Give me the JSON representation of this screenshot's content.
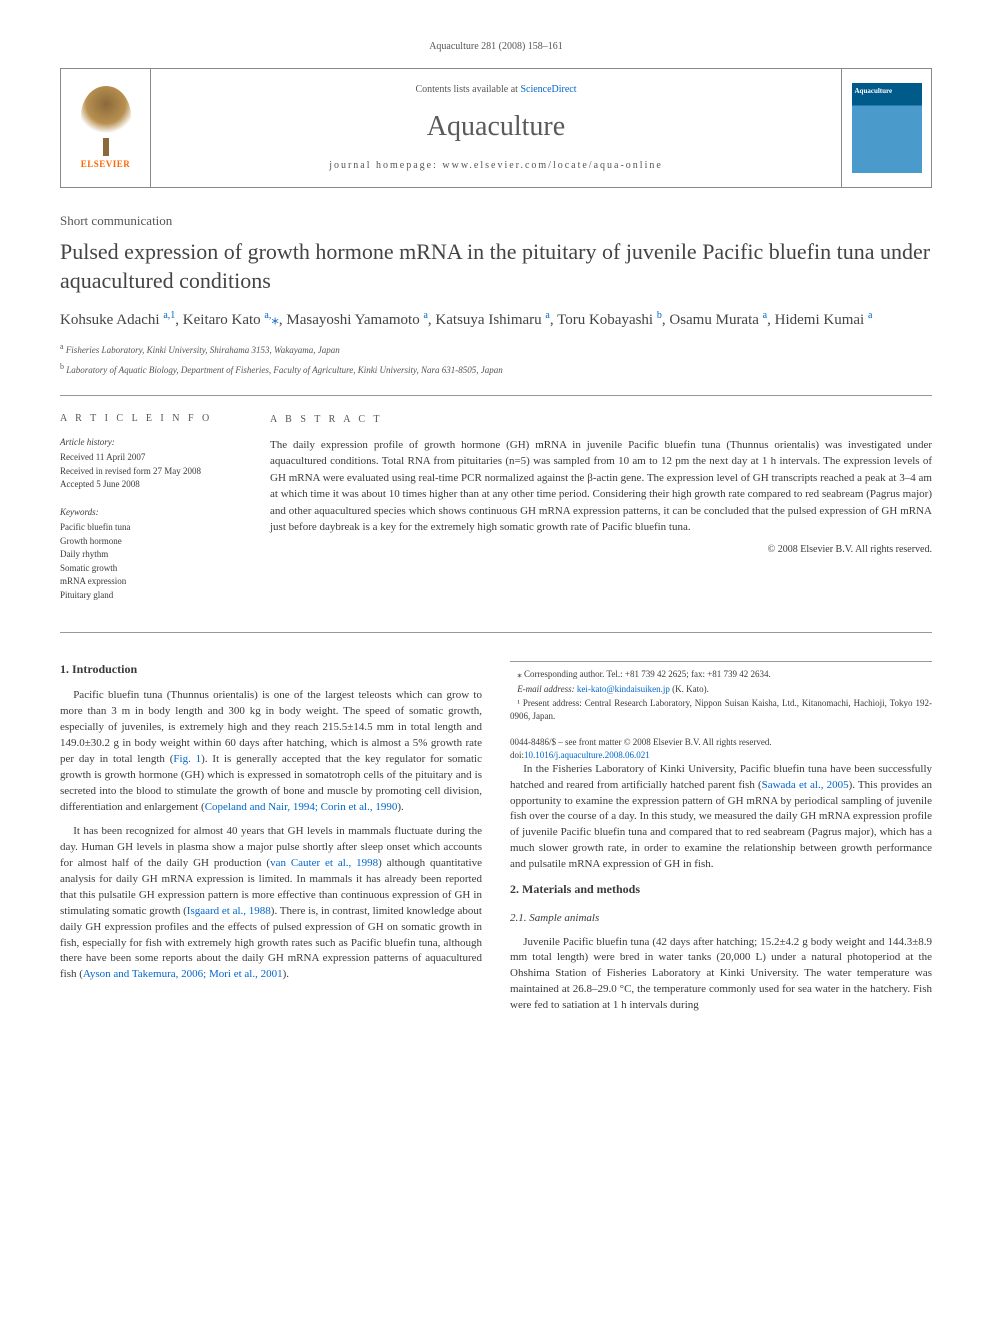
{
  "header": {
    "citation_line": "Aquaculture 281 (2008) 158–161",
    "contents_text": "Contents lists available at ",
    "contents_link": "ScienceDirect",
    "journal_name": "Aquaculture",
    "homepage_text": "journal homepage: www.elsevier.com/locate/aqua-online",
    "elsevier_label": "ELSEVIER",
    "cover_label": "Aquaculture"
  },
  "article": {
    "type": "Short communication",
    "title": "Pulsed expression of growth hormone mRNA in the pituitary of juvenile Pacific bluefin tuna under aquacultured conditions",
    "authors_html": "Kohsuke Adachi <sup>a,1</sup>, Keitaro Kato <sup>a,</sup><span class='star'>⁎</span>, Masayoshi Yamamoto <sup>a</sup>, Katsuya Ishimaru <sup>a</sup>, Toru Kobayashi <sup>b</sup>, Osamu Murata <sup>a</sup>, Hidemi Kumai <sup>a</sup>",
    "affiliations": [
      {
        "sup": "a",
        "text": "Fisheries Laboratory, Kinki University, Shirahama 3153, Wakayama, Japan"
      },
      {
        "sup": "b",
        "text": "Laboratory of Aquatic Biology, Department of Fisheries, Faculty of Agriculture, Kinki University, Nara 631-8505, Japan"
      }
    ]
  },
  "info": {
    "section_label": "A R T I C L E   I N F O",
    "history_heading": "Article history:",
    "history": [
      "Received 11 April 2007",
      "Received in revised form 27 May 2008",
      "Accepted 5 June 2008"
    ],
    "keywords_heading": "Keywords:",
    "keywords": [
      "Pacific bluefin tuna",
      "Growth hormone",
      "Daily rhythm",
      "Somatic growth",
      "mRNA expression",
      "Pituitary gland"
    ]
  },
  "abstract": {
    "section_label": "A B S T R A C T",
    "text": "The daily expression profile of growth hormone (GH) mRNA in juvenile Pacific bluefin tuna (Thunnus orientalis) was investigated under aquacultured conditions. Total RNA from pituitaries (n=5) was sampled from 10 am to 12 pm the next day at 1 h intervals. The expression levels of GH mRNA were evaluated using real-time PCR normalized against the β-actin gene. The expression level of GH transcripts reached a peak at 3–4 am at which time it was about 10 times higher than at any other time period. Considering their high growth rate compared to red seabream (Pagrus major) and other aquacultured species which shows continuous GH mRNA expression patterns, it can be concluded that the pulsed expression of GH mRNA just before daybreak is a key for the extremely high somatic growth rate of Pacific bluefin tuna.",
    "copyright": "© 2008 Elsevier B.V. All rights reserved."
  },
  "body": {
    "sec1_heading": "1. Introduction",
    "sec1_p1": "Pacific bluefin tuna (Thunnus orientalis) is one of the largest teleosts which can grow to more than 3 m in body length and 300 kg in body weight. The speed of somatic growth, especially of juveniles, is extremely high and they reach 215.5±14.5 mm in total length and 149.0±30.2 g in body weight within 60 days after hatching, which is almost a 5% growth rate per day in total length (",
    "sec1_p1_link1": "Fig. 1",
    "sec1_p1_cont": "). It is generally accepted that the key regulator for somatic growth is growth hormone (GH) which is expressed in somatotroph cells of the pituitary and is secreted into the blood to stimulate the growth of bone and muscle by promoting cell division, differentiation and enlargement (",
    "sec1_p1_link2": "Copeland and Nair, 1994; Corin et al., 1990",
    "sec1_p1_end": ").",
    "sec1_p2": "It has been recognized for almost 40 years that GH levels in mammals fluctuate during the day. Human GH levels in plasma show a major pulse shortly after sleep onset which accounts for almost half of the daily GH production (",
    "sec1_p2_link1": "van Cauter et al., 1998",
    "sec1_p2_cont": ") although quantitative analysis for daily GH mRNA expression is limited. In mammals it has already been reported that this pulsatile GH expression pattern is more effective than continuous expression of GH in stimulating somatic growth (",
    "sec1_p2_link2": "Isgaard et al., 1988",
    "sec1_p2_cont2": "). There is, in contrast, limited knowledge about daily GH expression profiles and the effects of pulsed expression of GH on somatic growth in fish, especially for fish with extremely high growth rates such as Pacific bluefin tuna, although there have been some reports about the daily GH mRNA expression patterns of aquacultured fish (",
    "sec1_p2_link3": "Ayson and Takemura, 2006; Mori et al., 2001",
    "sec1_p2_end": ").",
    "sec1_p3": "In the Fisheries Laboratory of Kinki University, Pacific bluefin tuna have been successfully hatched and reared from artificially hatched parent fish (",
    "sec1_p3_link1": "Sawada et al., 2005",
    "sec1_p3_cont": "). This provides an opportunity to examine the expression pattern of GH mRNA by periodical sampling of juvenile fish over the course of a day. In this study, we measured the daily GH mRNA expression profile of juvenile Pacific bluefin tuna and compared that to red seabream (Pagrus major), which has a much slower growth rate, in order to examine the relationship between growth performance and pulsatile mRNA expression of GH in fish.",
    "sec2_heading": "2. Materials and methods",
    "sec2_1_heading": "2.1. Sample animals",
    "sec2_1_p1": "Juvenile Pacific bluefin tuna (42 days after hatching; 15.2±4.2 g body weight and 144.3±8.9 mm total length) were bred in water tanks (20,000 L) under a natural photoperiod at the Ohshima Station of Fisheries Laboratory at Kinki University. The water temperature was maintained at 26.8–29.0 °C, the temperature commonly used for sea water in the hatchery. Fish were fed to satiation at 1 h intervals during"
  },
  "footnotes": {
    "corr": "⁎ Corresponding author. Tel.: +81 739 42 2625; fax: +81 739 42 2634.",
    "email_label": "E-mail address: ",
    "email": "kei-kato@kindaisuiken.jp",
    "email_suffix": " (K. Kato).",
    "note1": "¹ Present address: Central Research Laboratory, Nippon Suisan Kaisha, Ltd., Kitanomachi, Hachioji, Tokyo 192-0906, Japan."
  },
  "footer": {
    "line1": "0044-8486/$ – see front matter © 2008 Elsevier B.V. All rights reserved.",
    "doi_label": "doi:",
    "doi": "10.1016/j.aquaculture.2008.06.021"
  },
  "colors": {
    "link": "#0066cc",
    "text": "#3a3a3a",
    "rule": "#999999",
    "elsevier_orange": "#ff6600",
    "cover_top": "#005a8a",
    "cover_bottom": "#4a9acc"
  }
}
